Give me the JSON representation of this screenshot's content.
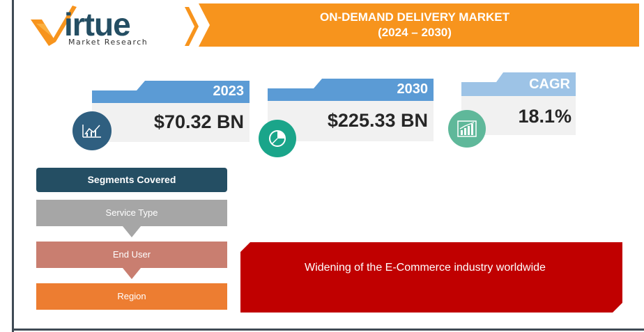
{
  "brand": {
    "name": "Virtue",
    "word": "irtue",
    "tagline": "Market Research",
    "colors": {
      "orange": "#f7941d",
      "navy": "#244e63"
    }
  },
  "header": {
    "title_line1": "ON-DEMAND DELIVERY MARKET",
    "title_line2": "(2024 – 2030)"
  },
  "stats": [
    {
      "label": "2023",
      "value": "$70.32 BN",
      "icon": "line-chart-icon",
      "tab_color": "#5b9bd5",
      "circle_color": "#2f5f80"
    },
    {
      "label": "2030",
      "value": "$225.33 BN",
      "icon": "pie-chart-icon",
      "tab_color": "#5b9bd5",
      "circle_color": "#1aa58a"
    },
    {
      "label": "CAGR",
      "value": "18.1%",
      "icon": "bar-growth-icon",
      "tab_color": "#9dc3e6",
      "circle_color": "#5fb89a"
    }
  ],
  "segments": {
    "heading": "Segments Covered",
    "items": [
      {
        "label": "Service Type",
        "color": "#a6a6a6"
      },
      {
        "label": "End User",
        "color": "#c97e70"
      },
      {
        "label": "Region",
        "color": "#ed7d31"
      }
    ]
  },
  "driver": {
    "text": "Widening of the E-Commerce industry worldwide",
    "color": "#c00000"
  }
}
